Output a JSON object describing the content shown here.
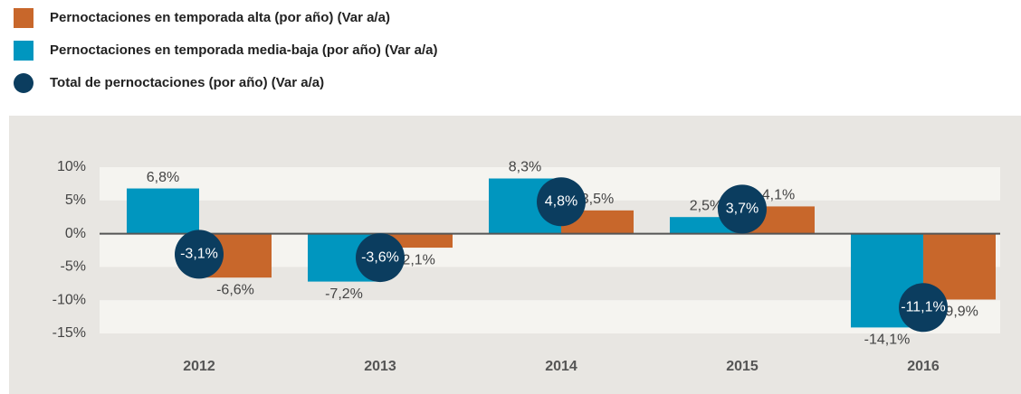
{
  "chart_data": {
    "type": "bar",
    "categories": [
      "2012",
      "2013",
      "2014",
      "2015",
      "2016"
    ],
    "series": [
      {
        "name": "Pernoctaciones en temporada alta (por año) (Var a/a)",
        "color": "#c8672b",
        "type": "bar",
        "values": [
          -6.6,
          -2.1,
          3.5,
          4.1,
          -9.9
        ],
        "value_labels": [
          "-6,6%",
          "-2,1%",
          "3,5%",
          "4,1%",
          "-9,9%"
        ]
      },
      {
        "name": "Pernoctaciones en temporada media-baja (por año) (Var a/a)",
        "color": "#0096bf",
        "type": "bar",
        "values": [
          6.8,
          -7.2,
          8.3,
          2.5,
          -14.1
        ],
        "value_labels": [
          "6,8%",
          "-7,2%",
          "8,3%",
          "2,5%",
          "-14,1%"
        ]
      },
      {
        "name": "Total de pernoctaciones (por año) (Var a/a)",
        "color": "#0b3d5f",
        "type": "circle",
        "values": [
          -3.1,
          -3.6,
          4.8,
          3.7,
          -11.1
        ],
        "value_labels": [
          "-3,1%",
          "-3,6%",
          "4,8%",
          "3,7%",
          "-11,1%"
        ]
      }
    ],
    "ylim": [
      -15,
      10
    ],
    "yticks": [
      {
        "value": 10,
        "label": "10%"
      },
      {
        "value": 5,
        "label": "5%"
      },
      {
        "value": 0,
        "label": "0%"
      },
      {
        "value": -5,
        "label": "-5%"
      },
      {
        "value": -10,
        "label": "-10%"
      },
      {
        "value": -15,
        "label": "-15%"
      }
    ],
    "grid": true
  }
}
